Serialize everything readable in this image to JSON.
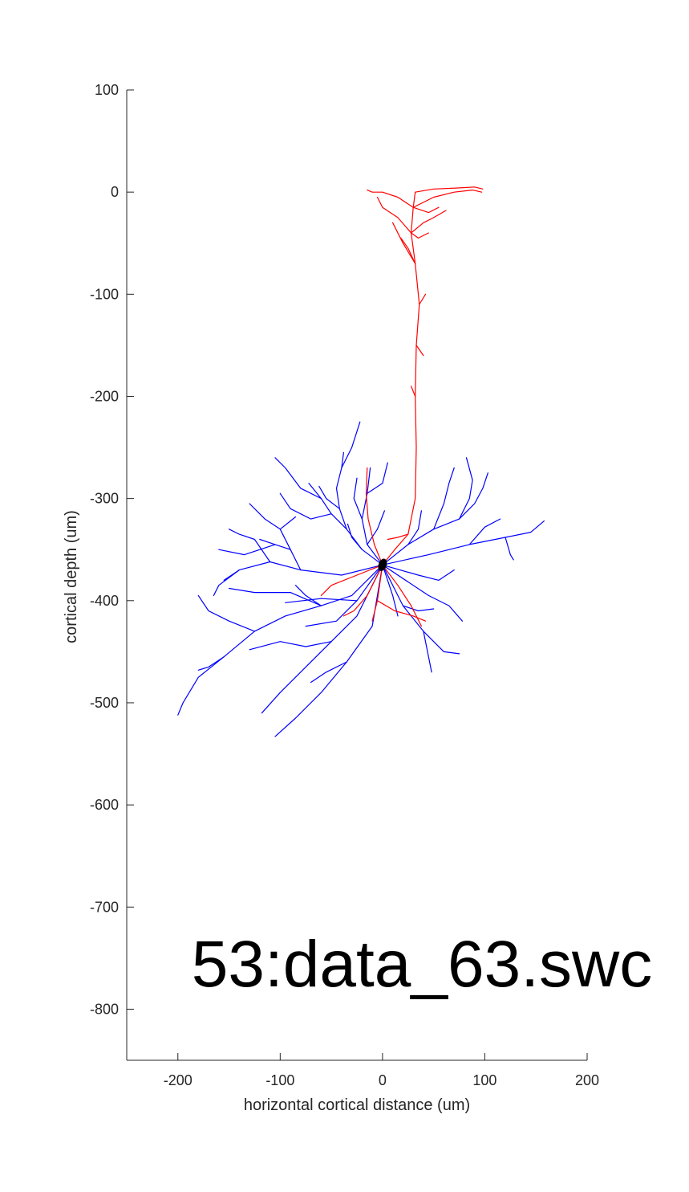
{
  "chart_data": {
    "type": "scatter",
    "title": "",
    "xlabel": "horizontal cortical distance (um)",
    "ylabel": "cortical depth (um)",
    "xlim": [
      -250,
      200
    ],
    "ylim": [
      -850,
      100
    ],
    "xticks": [
      -200,
      -100,
      0,
      100,
      200
    ],
    "yticks": [
      100,
      0,
      -100,
      -200,
      -300,
      -400,
      -500,
      -600,
      -700,
      -800
    ],
    "grid": false,
    "annotation": "53:data_63.swc",
    "soma": {
      "x": 0,
      "y": -365,
      "color": "#000000"
    },
    "series": [
      {
        "kind": "basal-dendrites",
        "color": "#0000ff",
        "branches": [
          [
            [
              0,
              -365
            ],
            [
              -20,
              -350
            ],
            [
              -35,
              -330
            ],
            [
              -50,
              -315
            ],
            [
              -60,
              -300
            ],
            [
              -72,
              -285
            ]
          ],
          [
            [
              -35,
              -330
            ],
            [
              -42,
              -310
            ],
            [
              -45,
              -290
            ],
            [
              -40,
              -270
            ],
            [
              -38,
              -255
            ]
          ],
          [
            [
              -50,
              -315
            ],
            [
              -70,
              -320
            ],
            [
              -90,
              -310
            ],
            [
              -100,
              -295
            ]
          ],
          [
            [
              -60,
              -300
            ],
            [
              -80,
              -290
            ],
            [
              -95,
              -270
            ],
            [
              -105,
              -260
            ]
          ],
          [
            [
              -40,
              -270
            ],
            [
              -30,
              -250
            ],
            [
              -22,
              -225
            ]
          ],
          [
            [
              0,
              -365
            ],
            [
              -15,
              -345
            ],
            [
              -20,
              -320
            ],
            [
              -15,
              -295
            ],
            [
              -12,
              -270
            ]
          ],
          [
            [
              -15,
              -295
            ],
            [
              0,
              -285
            ],
            [
              5,
              -265
            ]
          ],
          [
            [
              -20,
              -320
            ],
            [
              -28,
              -300
            ],
            [
              -25,
              -280
            ]
          ],
          [
            [
              0,
              -365
            ],
            [
              -40,
              -375
            ],
            [
              -80,
              -370
            ],
            [
              -110,
              -362
            ],
            [
              -140,
              -370
            ],
            [
              -155,
              -380
            ]
          ],
          [
            [
              -80,
              -370
            ],
            [
              -90,
              -350
            ],
            [
              -105,
              -345
            ],
            [
              -120,
              -340
            ]
          ],
          [
            [
              -110,
              -362
            ],
            [
              -125,
              -340
            ],
            [
              -140,
              -335
            ],
            [
              -150,
              -330
            ]
          ],
          [
            [
              -140,
              -370
            ],
            [
              -160,
              -385
            ],
            [
              -165,
              -395
            ]
          ],
          [
            [
              -90,
              -350
            ],
            [
              -100,
              -330
            ],
            [
              -115,
              -320
            ],
            [
              -130,
              -305
            ]
          ],
          [
            [
              -100,
              -330
            ],
            [
              -85,
              -318
            ]
          ],
          [
            [
              -105,
              -345
            ],
            [
              -135,
              -355
            ],
            [
              -160,
              -350
            ]
          ],
          [
            [
              0,
              -365
            ],
            [
              -30,
              -395
            ],
            [
              -60,
              -405
            ],
            [
              -95,
              -415
            ],
            [
              -125,
              -430
            ],
            [
              -155,
              -455
            ],
            [
              -180,
              -475
            ],
            [
              -195,
              -500
            ],
            [
              -200,
              -512
            ]
          ],
          [
            [
              -125,
              -430
            ],
            [
              -150,
              -420
            ],
            [
              -170,
              -410
            ],
            [
              -180,
              -395
            ]
          ],
          [
            [
              -60,
              -405
            ],
            [
              -90,
              -392
            ],
            [
              -125,
              -392
            ],
            [
              -150,
              -388
            ]
          ],
          [
            [
              -155,
              -455
            ],
            [
              -170,
              -465
            ],
            [
              -180,
              -468
            ]
          ],
          [
            [
              0,
              -365
            ],
            [
              -25,
              -415
            ],
            [
              -50,
              -440
            ],
            [
              -75,
              -465
            ],
            [
              -100,
              -490
            ],
            [
              -118,
              -510
            ]
          ],
          [
            [
              -50,
              -440
            ],
            [
              -75,
              -445
            ],
            [
              -100,
              -440
            ],
            [
              -130,
              -448
            ]
          ],
          [
            [
              0,
              -365
            ],
            [
              -10,
              -425
            ],
            [
              -35,
              -460
            ],
            [
              -60,
              -490
            ],
            [
              -85,
              -515
            ],
            [
              -105,
              -533
            ]
          ],
          [
            [
              -35,
              -460
            ],
            [
              -55,
              -470
            ],
            [
              -70,
              -480
            ]
          ],
          [
            [
              0,
              -365
            ],
            [
              -25,
              -400
            ],
            [
              -60,
              -398
            ],
            [
              -95,
              -402
            ]
          ],
          [
            [
              -25,
              -400
            ],
            [
              -45,
              -420
            ],
            [
              -75,
              -425
            ]
          ],
          [
            [
              0,
              -365
            ],
            [
              25,
              -345
            ],
            [
              50,
              -330
            ],
            [
              75,
              -320
            ],
            [
              90,
              -305
            ],
            [
              98,
              -290
            ],
            [
              103,
              -275
            ]
          ],
          [
            [
              75,
              -320
            ],
            [
              85,
              -300
            ],
            [
              88,
              -282
            ],
            [
              82,
              -260
            ]
          ],
          [
            [
              50,
              -330
            ],
            [
              60,
              -305
            ],
            [
              65,
              -285
            ],
            [
              70,
              -270
            ]
          ],
          [
            [
              0,
              -365
            ],
            [
              45,
              -355
            ],
            [
              85,
              -345
            ],
            [
              120,
              -338
            ],
            [
              145,
              -333
            ],
            [
              158,
              -322
            ]
          ],
          [
            [
              85,
              -345
            ],
            [
              100,
              -328
            ],
            [
              115,
              -320
            ]
          ],
          [
            [
              120,
              -338
            ],
            [
              125,
              -355
            ],
            [
              128,
              -360
            ]
          ],
          [
            [
              0,
              -365
            ],
            [
              35,
              -375
            ],
            [
              55,
              -380
            ],
            [
              70,
              -370
            ]
          ],
          [
            [
              0,
              -365
            ],
            [
              20,
              -405
            ],
            [
              40,
              -430
            ],
            [
              60,
              -450
            ],
            [
              75,
              -452
            ]
          ],
          [
            [
              40,
              -430
            ],
            [
              45,
              -455
            ],
            [
              48,
              -470
            ]
          ],
          [
            [
              0,
              -365
            ],
            [
              45,
              -395
            ],
            [
              65,
              -405
            ],
            [
              78,
              -420
            ]
          ],
          [
            [
              0,
              -365
            ],
            [
              10,
              -395
            ],
            [
              15,
              -415
            ]
          ],
          [
            [
              -20,
              -350
            ],
            [
              -30,
              -338
            ],
            [
              -34,
              -325
            ]
          ],
          [
            [
              -42,
              -310
            ],
            [
              -55,
              -300
            ],
            [
              -62,
              -288
            ]
          ],
          [
            [
              -15,
              -345
            ],
            [
              -5,
              -330
            ],
            [
              2,
              -312
            ]
          ],
          [
            [
              25,
              -345
            ],
            [
              35,
              -330
            ],
            [
              38,
              -312
            ]
          ],
          [
            [
              -60,
              -405
            ],
            [
              -75,
              -395
            ],
            [
              -85,
              -385
            ]
          ],
          [
            [
              20,
              -405
            ],
            [
              35,
              -410
            ],
            [
              50,
              -408
            ]
          ]
        ]
      },
      {
        "kind": "apical-dendrite",
        "color": "#ff0000",
        "branches": [
          [
            [
              0,
              -365
            ],
            [
              12,
              -350
            ],
            [
              25,
              -335
            ],
            [
              32,
              -300
            ],
            [
              33,
              -250
            ],
            [
              32,
              -200
            ],
            [
              33,
              -150
            ],
            [
              36,
              -110
            ],
            [
              32,
              -70
            ],
            [
              28,
              -40
            ],
            [
              30,
              -15
            ],
            [
              32,
              0
            ]
          ],
          [
            [
              30,
              -15
            ],
            [
              50,
              -5
            ],
            [
              70,
              0
            ],
            [
              88,
              2
            ],
            [
              97,
              0
            ]
          ],
          [
            [
              32,
              0
            ],
            [
              50,
              3
            ],
            [
              72,
              4
            ],
            [
              90,
              5
            ],
            [
              98,
              3
            ]
          ],
          [
            [
              30,
              -15
            ],
            [
              15,
              -5
            ],
            [
              0,
              0
            ],
            [
              -10,
              0
            ],
            [
              -15,
              2
            ]
          ],
          [
            [
              28,
              -40
            ],
            [
              15,
              -25
            ],
            [
              0,
              -15
            ],
            [
              -5,
              -5
            ]
          ],
          [
            [
              32,
              -70
            ],
            [
              20,
              -50
            ],
            [
              10,
              -30
            ]
          ],
          [
            [
              28,
              -40
            ],
            [
              40,
              -30
            ],
            [
              50,
              -25
            ],
            [
              62,
              -18
            ]
          ],
          [
            [
              30,
              -15
            ],
            [
              45,
              -20
            ],
            [
              55,
              -15
            ]
          ],
          [
            [
              28,
              -40
            ],
            [
              35,
              -45
            ],
            [
              45,
              -40
            ]
          ],
          [
            [
              32,
              -70
            ],
            [
              25,
              -55
            ],
            [
              18,
              -45
            ]
          ],
          [
            [
              36,
              -110
            ],
            [
              42,
              -100
            ]
          ],
          [
            [
              32,
              -200
            ],
            [
              28,
              -190
            ]
          ],
          [
            [
              33,
              -150
            ],
            [
              40,
              -160
            ]
          ],
          [
            [
              25,
              -335
            ],
            [
              15,
              -338
            ],
            [
              5,
              -340
            ]
          ]
        ]
      },
      {
        "kind": "axon-proximal",
        "color": "#ff0000",
        "branches": [
          [
            [
              0,
              -365
            ],
            [
              -8,
              -345
            ],
            [
              -14,
              -320
            ],
            [
              -16,
              -295
            ],
            [
              -15,
              -270
            ]
          ],
          [
            [
              0,
              -365
            ],
            [
              -25,
              -375
            ],
            [
              -50,
              -385
            ],
            [
              -60,
              -395
            ]
          ],
          [
            [
              0,
              -365
            ],
            [
              -5,
              -400
            ],
            [
              -10,
              -420
            ]
          ],
          [
            [
              0,
              -365
            ],
            [
              15,
              -385
            ],
            [
              28,
              -405
            ],
            [
              38,
              -425
            ]
          ],
          [
            [
              0,
              -365
            ],
            [
              -15,
              -395
            ],
            [
              -28,
              -410
            ],
            [
              -38,
              -415
            ]
          ],
          [
            [
              -5,
              -400
            ],
            [
              12,
              -410
            ],
            [
              30,
              -415
            ],
            [
              42,
              -420
            ]
          ]
        ]
      }
    ]
  }
}
